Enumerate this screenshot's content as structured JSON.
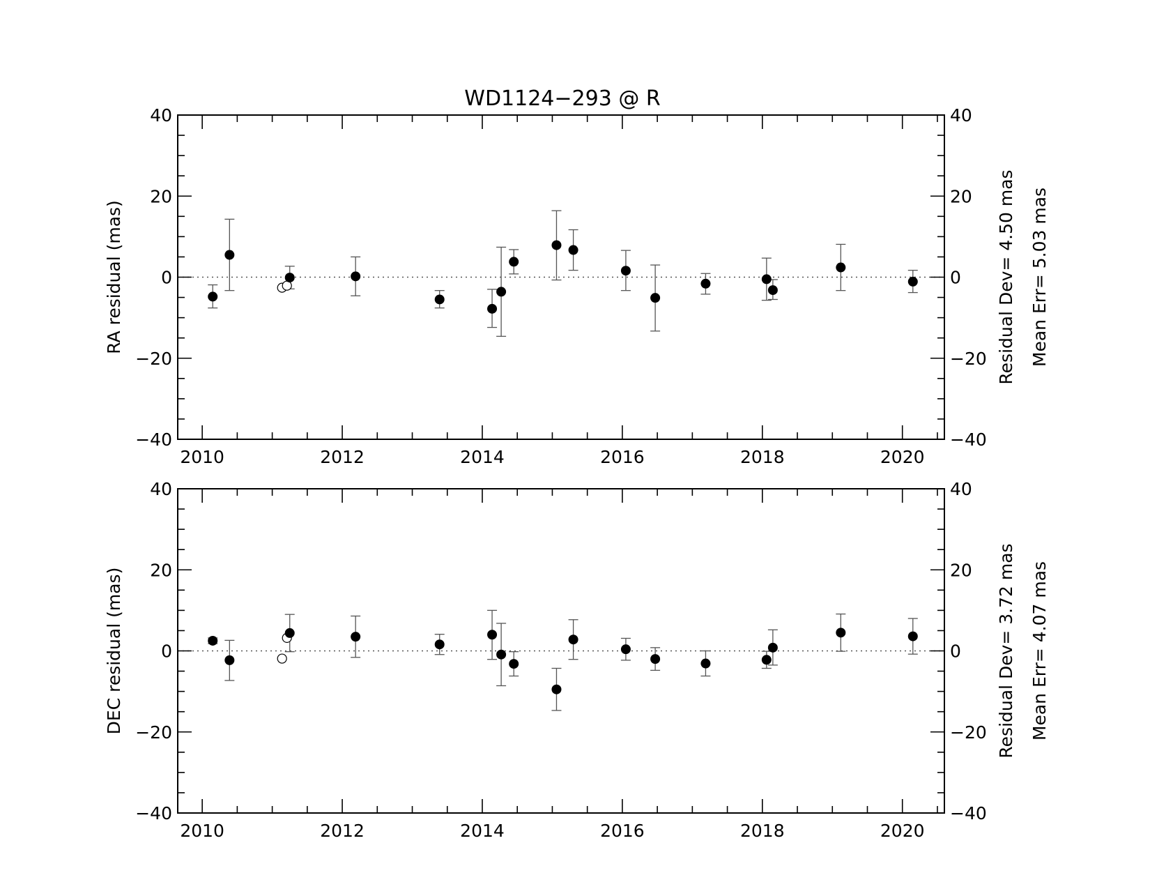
{
  "chart_data": {
    "type": "scatter",
    "title": "WD1124−293 @ R",
    "xlim": [
      2009.65,
      2020.6
    ],
    "ylim": [
      -40,
      40
    ],
    "x_ticks": [
      2010,
      2012,
      2014,
      2016,
      2018,
      2020
    ],
    "x_tick_labels": [
      "2010",
      "2012",
      "2014",
      "2016",
      "2018",
      "2020"
    ],
    "y_ticks": [
      -40,
      -20,
      0,
      20,
      40
    ],
    "y_tick_labels": [
      "−40",
      "−20",
      "0",
      "20",
      "40"
    ],
    "panels": [
      {
        "ylabel": "RA residual (mas)",
        "stats": [
          "Residual Dev=   4.50  mas",
          "Mean  Err=  5.03  mas"
        ],
        "filled": [
          {
            "x": 2010.15,
            "y": -4.8,
            "lo": -7.6,
            "hi": -1.9
          },
          {
            "x": 2010.39,
            "y": 5.5,
            "lo": -3.3,
            "hi": 14.3
          },
          {
            "x": 2011.25,
            "y": -0.1,
            "lo": -2.9,
            "hi": 2.7
          },
          {
            "x": 2012.19,
            "y": 0.2,
            "lo": -4.6,
            "hi": 5.0
          },
          {
            "x": 2013.39,
            "y": -5.5,
            "lo": -7.6,
            "hi": -3.3
          },
          {
            "x": 2014.14,
            "y": -7.8,
            "lo": -12.4,
            "hi": -3.0
          },
          {
            "x": 2014.27,
            "y": -3.6,
            "lo": -14.6,
            "hi": 7.4
          },
          {
            "x": 2014.45,
            "y": 3.8,
            "lo": 0.8,
            "hi": 6.8
          },
          {
            "x": 2015.06,
            "y": 7.9,
            "lo": -0.7,
            "hi": 16.4
          },
          {
            "x": 2015.3,
            "y": 6.7,
            "lo": 1.7,
            "hi": 11.7
          },
          {
            "x": 2016.05,
            "y": 1.6,
            "lo": -3.3,
            "hi": 6.6
          },
          {
            "x": 2016.47,
            "y": -5.1,
            "lo": -13.3,
            "hi": 3.0
          },
          {
            "x": 2017.19,
            "y": -1.6,
            "lo": -4.2,
            "hi": 0.9
          },
          {
            "x": 2018.06,
            "y": -0.5,
            "lo": -5.7,
            "hi": 4.7
          },
          {
            "x": 2018.15,
            "y": -3.2,
            "lo": -5.5,
            "hi": -0.6
          },
          {
            "x": 2019.12,
            "y": 2.4,
            "lo": -3.3,
            "hi": 8.1
          },
          {
            "x": 2020.15,
            "y": -1.1,
            "lo": -3.8,
            "hi": 1.7
          }
        ],
        "open": [
          {
            "x": 2011.14,
            "y": -2.6
          },
          {
            "x": 2011.21,
            "y": -2.1
          }
        ]
      },
      {
        "ylabel": "DEC residual (mas)",
        "stats": [
          "Residual Dev=   3.72  mas",
          "Mean  Err=  4.07  mas"
        ],
        "filled": [
          {
            "x": 2010.15,
            "y": 2.5,
            "lo": 1.8,
            "hi": 3.2
          },
          {
            "x": 2010.39,
            "y": -2.3,
            "lo": -7.3,
            "hi": 2.6
          },
          {
            "x": 2011.25,
            "y": 4.4,
            "lo": -0.2,
            "hi": 9.0
          },
          {
            "x": 2012.19,
            "y": 3.5,
            "lo": -1.6,
            "hi": 8.6
          },
          {
            "x": 2013.39,
            "y": 1.6,
            "lo": -0.9,
            "hi": 4.1
          },
          {
            "x": 2014.14,
            "y": 4.0,
            "lo": -2.1,
            "hi": 10.0
          },
          {
            "x": 2014.27,
            "y": -0.9,
            "lo": -8.6,
            "hi": 6.8
          },
          {
            "x": 2014.45,
            "y": -3.2,
            "lo": -6.2,
            "hi": -0.2
          },
          {
            "x": 2015.06,
            "y": -9.5,
            "lo": -14.7,
            "hi": -4.3
          },
          {
            "x": 2015.3,
            "y": 2.8,
            "lo": -2.1,
            "hi": 7.7
          },
          {
            "x": 2016.05,
            "y": 0.4,
            "lo": -2.3,
            "hi": 3.1
          },
          {
            "x": 2016.47,
            "y": -2.0,
            "lo": -4.8,
            "hi": 0.8
          },
          {
            "x": 2017.19,
            "y": -3.1,
            "lo": -6.2,
            "hi": 0.0
          },
          {
            "x": 2018.06,
            "y": -2.2,
            "lo": -4.3,
            "hi": -0.1
          },
          {
            "x": 2018.15,
            "y": 0.8,
            "lo": -3.5,
            "hi": 5.2
          },
          {
            "x": 2019.12,
            "y": 4.5,
            "lo": -0.1,
            "hi": 9.1
          },
          {
            "x": 2020.15,
            "y": 3.6,
            "lo": -0.8,
            "hi": 8.0
          }
        ],
        "open": [
          {
            "x": 2011.14,
            "y": -1.9
          },
          {
            "x": 2011.21,
            "y": 3.2
          }
        ]
      }
    ]
  }
}
